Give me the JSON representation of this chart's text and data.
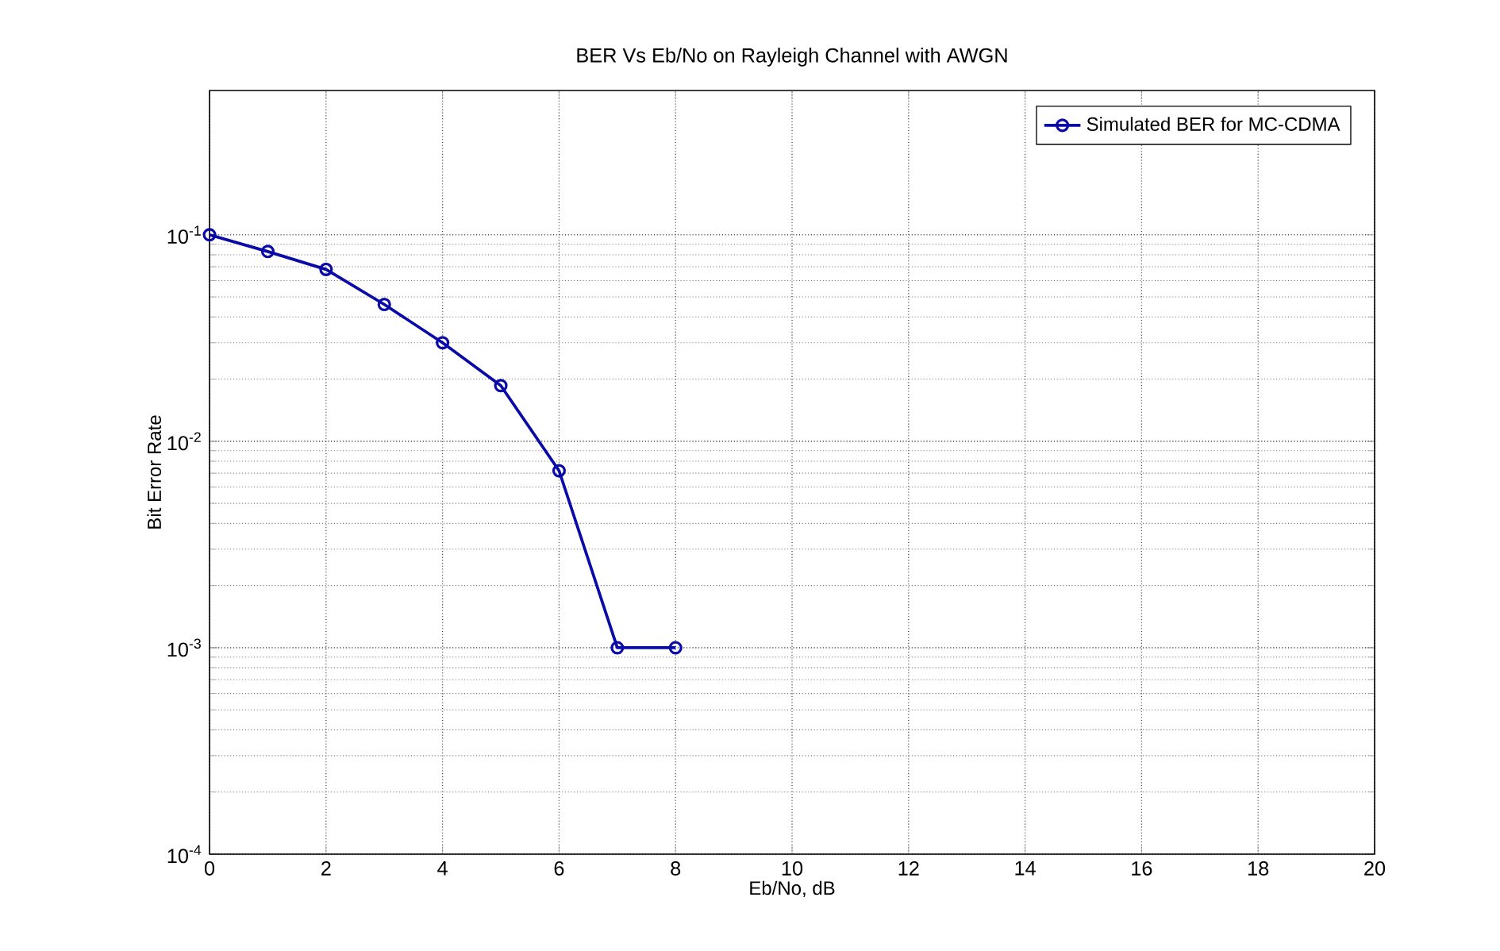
{
  "chart_data": {
    "type": "line",
    "title": "BER Vs Eb/No on Rayleigh Channel with AWGN",
    "xlabel": "Eb/No, dB",
    "ylabel": "Bit Error Rate",
    "x": [
      0,
      1,
      2,
      3,
      4,
      5,
      6,
      7,
      8
    ],
    "series": [
      {
        "name": "Simulated BER for MC-CDMA",
        "color": "#0a0aa8",
        "values": [
          0.1,
          0.083,
          0.068,
          0.046,
          0.03,
          0.0186,
          0.0072,
          0.001,
          0.001
        ]
      }
    ],
    "xlim": [
      0,
      20
    ],
    "xticks": [
      0,
      2,
      4,
      6,
      8,
      10,
      12,
      14,
      16,
      18,
      20
    ],
    "ylim": [
      0.0001,
      0.5
    ],
    "yticks": [
      {
        "value": 0.0001,
        "label": "10$^{-4}$"
      },
      {
        "value": 0.001,
        "label": "10$^{-3}$"
      },
      {
        "value": 0.01,
        "label": "10$^{-2}$"
      },
      {
        "value": 0.1,
        "label": "10$^{-1}$"
      }
    ],
    "log": "y",
    "grid": true,
    "legend": "top right",
    "marker": "circle",
    "line_style": "solid"
  }
}
